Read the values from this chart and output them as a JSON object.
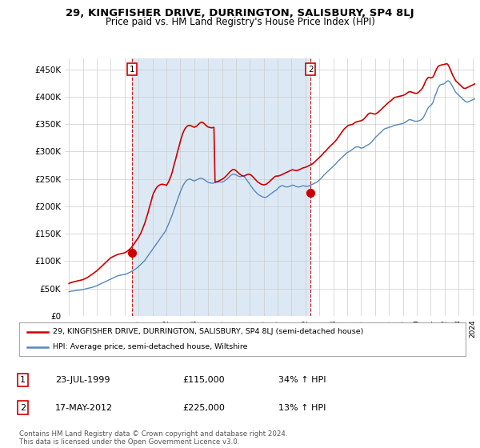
{
  "title": "29, KINGFISHER DRIVE, DURRINGTON, SALISBURY, SP4 8LJ",
  "subtitle": "Price paid vs. HM Land Registry's House Price Index (HPI)",
  "legend_line1": "29, KINGFISHER DRIVE, DURRINGTON, SALISBURY, SP4 8LJ (semi-detached house)",
  "legend_line2": "HPI: Average price, semi-detached house, Wiltshire",
  "annotation1": {
    "label": "1",
    "date": "23-JUL-1999",
    "price": "£115,000",
    "pct": "34% ↑ HPI",
    "x_year": 1999.55,
    "y_val": 115000
  },
  "annotation2": {
    "label": "2",
    "date": "17-MAY-2012",
    "price": "£225,000",
    "pct": "13% ↑ HPI",
    "x_year": 2012.37,
    "y_val": 225000
  },
  "footer": "Contains HM Land Registry data © Crown copyright and database right 2024.\nThis data is licensed under the Open Government Licence v3.0.",
  "red_color": "#cc0000",
  "blue_color": "#5588bb",
  "blue_fill_color": "#dce9f5",
  "background_color": "#ffffff",
  "ylim": [
    0,
    470000
  ],
  "yticks": [
    0,
    50000,
    100000,
    150000,
    200000,
    250000,
    300000,
    350000,
    400000,
    450000
  ],
  "xlim_start": 1994.7,
  "xlim_end": 2024.2,
  "hpi_years": [
    1995.0,
    1995.08,
    1995.17,
    1995.25,
    1995.33,
    1995.42,
    1995.5,
    1995.58,
    1995.67,
    1995.75,
    1995.83,
    1995.92,
    1996.0,
    1996.08,
    1996.17,
    1996.25,
    1996.33,
    1996.42,
    1996.5,
    1996.58,
    1996.67,
    1996.75,
    1996.83,
    1996.92,
    1997.0,
    1997.08,
    1997.17,
    1997.25,
    1997.33,
    1997.42,
    1997.5,
    1997.58,
    1997.67,
    1997.75,
    1997.83,
    1997.92,
    1998.0,
    1998.08,
    1998.17,
    1998.25,
    1998.33,
    1998.42,
    1998.5,
    1998.58,
    1998.67,
    1998.75,
    1998.83,
    1998.92,
    1999.0,
    1999.08,
    1999.17,
    1999.25,
    1999.33,
    1999.42,
    1999.5,
    1999.58,
    1999.67,
    1999.75,
    1999.83,
    1999.92,
    2000.0,
    2000.08,
    2000.17,
    2000.25,
    2000.33,
    2000.42,
    2000.5,
    2000.58,
    2000.67,
    2000.75,
    2000.83,
    2000.92,
    2001.0,
    2001.08,
    2001.17,
    2001.25,
    2001.33,
    2001.42,
    2001.5,
    2001.58,
    2001.67,
    2001.75,
    2001.83,
    2001.92,
    2002.0,
    2002.08,
    2002.17,
    2002.25,
    2002.33,
    2002.42,
    2002.5,
    2002.58,
    2002.67,
    2002.75,
    2002.83,
    2002.92,
    2003.0,
    2003.08,
    2003.17,
    2003.25,
    2003.33,
    2003.42,
    2003.5,
    2003.58,
    2003.67,
    2003.75,
    2003.83,
    2003.92,
    2004.0,
    2004.08,
    2004.17,
    2004.25,
    2004.33,
    2004.42,
    2004.5,
    2004.58,
    2004.67,
    2004.75,
    2004.83,
    2004.92,
    2005.0,
    2005.08,
    2005.17,
    2005.25,
    2005.33,
    2005.42,
    2005.5,
    2005.58,
    2005.67,
    2005.75,
    2005.83,
    2005.92,
    2006.0,
    2006.08,
    2006.17,
    2006.25,
    2006.33,
    2006.42,
    2006.5,
    2006.58,
    2006.67,
    2006.75,
    2006.83,
    2006.92,
    2007.0,
    2007.08,
    2007.17,
    2007.25,
    2007.33,
    2007.42,
    2007.5,
    2007.58,
    2007.67,
    2007.75,
    2007.83,
    2007.92,
    2008.0,
    2008.08,
    2008.17,
    2008.25,
    2008.33,
    2008.42,
    2008.5,
    2008.58,
    2008.67,
    2008.75,
    2008.83,
    2008.92,
    2009.0,
    2009.08,
    2009.17,
    2009.25,
    2009.33,
    2009.42,
    2009.5,
    2009.58,
    2009.67,
    2009.75,
    2009.83,
    2009.92,
    2010.0,
    2010.08,
    2010.17,
    2010.25,
    2010.33,
    2010.42,
    2010.5,
    2010.58,
    2010.67,
    2010.75,
    2010.83,
    2010.92,
    2011.0,
    2011.08,
    2011.17,
    2011.25,
    2011.33,
    2011.42,
    2011.5,
    2011.58,
    2011.67,
    2011.75,
    2011.83,
    2011.92,
    2012.0,
    2012.08,
    2012.17,
    2012.25,
    2012.33,
    2012.42,
    2012.5,
    2012.58,
    2012.67,
    2012.75,
    2012.83,
    2012.92,
    2013.0,
    2013.08,
    2013.17,
    2013.25,
    2013.33,
    2013.42,
    2013.5,
    2013.58,
    2013.67,
    2013.75,
    2013.83,
    2013.92,
    2014.0,
    2014.08,
    2014.17,
    2014.25,
    2014.33,
    2014.42,
    2014.5,
    2014.58,
    2014.67,
    2014.75,
    2014.83,
    2014.92,
    2015.0,
    2015.08,
    2015.17,
    2015.25,
    2015.33,
    2015.42,
    2015.5,
    2015.58,
    2015.67,
    2015.75,
    2015.83,
    2015.92,
    2016.0,
    2016.08,
    2016.17,
    2016.25,
    2016.33,
    2016.42,
    2016.5,
    2016.58,
    2016.67,
    2016.75,
    2016.83,
    2016.92,
    2017.0,
    2017.08,
    2017.17,
    2017.25,
    2017.33,
    2017.42,
    2017.5,
    2017.58,
    2017.67,
    2017.75,
    2017.83,
    2017.92,
    2018.0,
    2018.08,
    2018.17,
    2018.25,
    2018.33,
    2018.42,
    2018.5,
    2018.58,
    2018.67,
    2018.75,
    2018.83,
    2018.92,
    2019.0,
    2019.08,
    2019.17,
    2019.25,
    2019.33,
    2019.42,
    2019.5,
    2019.58,
    2019.67,
    2019.75,
    2019.83,
    2019.92,
    2020.0,
    2020.08,
    2020.17,
    2020.25,
    2020.33,
    2020.42,
    2020.5,
    2020.58,
    2020.67,
    2020.75,
    2020.83,
    2020.92,
    2021.0,
    2021.08,
    2021.17,
    2021.25,
    2021.33,
    2021.42,
    2021.5,
    2021.58,
    2021.67,
    2021.75,
    2021.83,
    2021.92,
    2022.0,
    2022.08,
    2022.17,
    2022.25,
    2022.33,
    2022.42,
    2022.5,
    2022.58,
    2022.67,
    2022.75,
    2022.83,
    2022.92,
    2023.0,
    2023.08,
    2023.17,
    2023.25,
    2023.33,
    2023.42,
    2023.5,
    2023.58,
    2023.67,
    2023.75,
    2023.83,
    2023.92,
    2024.0,
    2024.08,
    2024.17
  ],
  "hpi_values": [
    44000,
    44500,
    45000,
    45200,
    45500,
    45800,
    46000,
    46300,
    46600,
    47000,
    47200,
    47500,
    48000,
    48500,
    49000,
    49500,
    50000,
    50500,
    51000,
    51500,
    52000,
    52800,
    53500,
    54200,
    55000,
    56000,
    57000,
    58000,
    59000,
    60000,
    61000,
    62000,
    63000,
    64000,
    65000,
    66000,
    67000,
    68000,
    69000,
    70000,
    71000,
    72000,
    73000,
    73500,
    74000,
    74500,
    74800,
    75000,
    75500,
    76000,
    77000,
    78000,
    79000,
    80000,
    81000,
    82000,
    83500,
    85000,
    86500,
    88000,
    90000,
    92000,
    94000,
    96000,
    98000,
    100000,
    103000,
    106000,
    109000,
    112000,
    115000,
    118000,
    121000,
    124000,
    127000,
    130000,
    133000,
    136000,
    139000,
    142000,
    145000,
    148000,
    151000,
    154000,
    158000,
    163000,
    168000,
    173000,
    178000,
    184000,
    190000,
    196000,
    202000,
    208000,
    214000,
    220000,
    226000,
    231000,
    236000,
    240000,
    243000,
    246000,
    248000,
    249000,
    249500,
    249000,
    248000,
    247000,
    246000,
    247000,
    248000,
    249000,
    250000,
    251000,
    251000,
    250500,
    249500,
    248000,
    246500,
    245000,
    243500,
    243000,
    242500,
    242000,
    242000,
    242500,
    243000,
    243500,
    244000,
    244500,
    244500,
    244000,
    244000,
    245000,
    246000,
    247500,
    249000,
    251000,
    253000,
    255000,
    257000,
    258000,
    258500,
    258000,
    257000,
    256000,
    255000,
    254000,
    254000,
    254500,
    255000,
    254000,
    252000,
    249000,
    246000,
    243000,
    240000,
    237000,
    234000,
    231000,
    228500,
    226000,
    224000,
    222000,
    220500,
    219000,
    218000,
    217000,
    216500,
    216000,
    216500,
    217500,
    219000,
    221000,
    222500,
    224000,
    225500,
    227000,
    228500,
    230000,
    232000,
    234000,
    236000,
    237000,
    237500,
    237000,
    236000,
    235500,
    235000,
    235500,
    236000,
    237000,
    238000,
    238500,
    238000,
    237000,
    236000,
    235500,
    235000,
    235500,
    236000,
    237000,
    237500,
    237000,
    236500,
    236000,
    236500,
    237000,
    238000,
    239000,
    240000,
    241000,
    242000,
    243000,
    244500,
    246000,
    248000,
    250000,
    252000,
    254500,
    257000,
    259000,
    261000,
    263000,
    265000,
    267000,
    269000,
    271000,
    273000,
    275000,
    277000,
    279500,
    282000,
    284000,
    286000,
    288000,
    290000,
    292000,
    294000,
    296000,
    298000,
    299000,
    300000,
    301500,
    303000,
    304500,
    306000,
    307500,
    308000,
    308500,
    308000,
    307000,
    306000,
    306500,
    307000,
    308500,
    310000,
    311000,
    312000,
    313500,
    315000,
    317000,
    319500,
    322000,
    325000,
    327000,
    329000,
    331000,
    333000,
    335000,
    337000,
    339000,
    341000,
    342000,
    342500,
    343000,
    344000,
    344500,
    345000,
    346000,
    347000,
    347500,
    348000,
    348500,
    349000,
    349500,
    350000,
    350500,
    351000,
    352000,
    353000,
    354500,
    356000,
    357500,
    358000,
    357500,
    357000,
    356000,
    355500,
    355000,
    355000,
    355500,
    356000,
    357000,
    358000,
    360000,
    363000,
    367000,
    372000,
    376000,
    380000,
    382000,
    384000,
    386000,
    390000,
    396000,
    402000,
    408000,
    414000,
    418000,
    421000,
    422000,
    422500,
    423000,
    424000,
    426000,
    428000,
    429000,
    428000,
    425000,
    422000,
    418000,
    414000,
    410000,
    407000,
    405000,
    403000,
    401000,
    399000,
    397000,
    395000,
    393000,
    391000,
    390000,
    390000,
    391000,
    392000,
    393000,
    394000,
    395000,
    396000
  ],
  "red_years": [
    1995.0,
    1995.08,
    1995.17,
    1995.25,
    1995.33,
    1995.42,
    1995.5,
    1995.58,
    1995.67,
    1995.75,
    1995.83,
    1995.92,
    1996.0,
    1996.08,
    1996.17,
    1996.25,
    1996.33,
    1996.42,
    1996.5,
    1996.58,
    1996.67,
    1996.75,
    1996.83,
    1996.92,
    1997.0,
    1997.08,
    1997.17,
    1997.25,
    1997.33,
    1997.42,
    1997.5,
    1997.58,
    1997.67,
    1997.75,
    1997.83,
    1997.92,
    1998.0,
    1998.08,
    1998.17,
    1998.25,
    1998.33,
    1998.42,
    1998.5,
    1998.58,
    1998.67,
    1998.75,
    1998.83,
    1998.92,
    1999.0,
    1999.08,
    1999.17,
    1999.25,
    1999.33,
    1999.42,
    1999.5,
    1999.58,
    1999.67,
    1999.75,
    1999.83,
    1999.92,
    2000.0,
    2000.08,
    2000.17,
    2000.25,
    2000.33,
    2000.42,
    2000.5,
    2000.58,
    2000.67,
    2000.75,
    2000.83,
    2000.92,
    2001.0,
    2001.08,
    2001.17,
    2001.25,
    2001.33,
    2001.42,
    2001.5,
    2001.58,
    2001.67,
    2001.75,
    2001.83,
    2001.92,
    2002.0,
    2002.08,
    2002.17,
    2002.25,
    2002.33,
    2002.42,
    2002.5,
    2002.58,
    2002.67,
    2002.75,
    2002.83,
    2002.92,
    2003.0,
    2003.08,
    2003.17,
    2003.25,
    2003.33,
    2003.42,
    2003.5,
    2003.58,
    2003.67,
    2003.75,
    2003.83,
    2003.92,
    2004.0,
    2004.08,
    2004.17,
    2004.25,
    2004.33,
    2004.42,
    2004.5,
    2004.58,
    2004.67,
    2004.75,
    2004.83,
    2004.92,
    2005.0,
    2005.08,
    2005.17,
    2005.25,
    2005.33,
    2005.42,
    2005.5,
    2005.58,
    2005.67,
    2005.75,
    2005.83,
    2005.92,
    2006.0,
    2006.08,
    2006.17,
    2006.25,
    2006.33,
    2006.42,
    2006.5,
    2006.58,
    2006.67,
    2006.75,
    2006.83,
    2006.92,
    2007.0,
    2007.08,
    2007.17,
    2007.25,
    2007.33,
    2007.42,
    2007.5,
    2007.58,
    2007.67,
    2007.75,
    2007.83,
    2007.92,
    2008.0,
    2008.08,
    2008.17,
    2008.25,
    2008.33,
    2008.42,
    2008.5,
    2008.58,
    2008.67,
    2008.75,
    2008.83,
    2008.92,
    2009.0,
    2009.08,
    2009.17,
    2009.25,
    2009.33,
    2009.42,
    2009.5,
    2009.58,
    2009.67,
    2009.75,
    2009.83,
    2009.92,
    2010.0,
    2010.08,
    2010.17,
    2010.25,
    2010.33,
    2010.42,
    2010.5,
    2010.58,
    2010.67,
    2010.75,
    2010.83,
    2010.92,
    2011.0,
    2011.08,
    2011.17,
    2011.25,
    2011.33,
    2011.42,
    2011.5,
    2011.58,
    2011.67,
    2011.75,
    2011.83,
    2011.92,
    2012.0,
    2012.08,
    2012.17,
    2012.25,
    2012.33,
    2012.42,
    2012.5,
    2012.58,
    2012.67,
    2012.75,
    2012.83,
    2012.92,
    2013.0,
    2013.08,
    2013.17,
    2013.25,
    2013.33,
    2013.42,
    2013.5,
    2013.58,
    2013.67,
    2013.75,
    2013.83,
    2013.92,
    2014.0,
    2014.08,
    2014.17,
    2014.25,
    2014.33,
    2014.42,
    2014.5,
    2014.58,
    2014.67,
    2014.75,
    2014.83,
    2014.92,
    2015.0,
    2015.08,
    2015.17,
    2015.25,
    2015.33,
    2015.42,
    2015.5,
    2015.58,
    2015.67,
    2015.75,
    2015.83,
    2015.92,
    2016.0,
    2016.08,
    2016.17,
    2016.25,
    2016.33,
    2016.42,
    2016.5,
    2016.58,
    2016.67,
    2016.75,
    2016.83,
    2016.92,
    2017.0,
    2017.08,
    2017.17,
    2017.25,
    2017.33,
    2017.42,
    2017.5,
    2017.58,
    2017.67,
    2017.75,
    2017.83,
    2017.92,
    2018.0,
    2018.08,
    2018.17,
    2018.25,
    2018.33,
    2018.42,
    2018.5,
    2018.58,
    2018.67,
    2018.75,
    2018.83,
    2018.92,
    2019.0,
    2019.08,
    2019.17,
    2019.25,
    2019.33,
    2019.42,
    2019.5,
    2019.58,
    2019.67,
    2019.75,
    2019.83,
    2019.92,
    2020.0,
    2020.08,
    2020.17,
    2020.25,
    2020.33,
    2020.42,
    2020.5,
    2020.58,
    2020.67,
    2020.75,
    2020.83,
    2020.92,
    2021.0,
    2021.08,
    2021.17,
    2021.25,
    2021.33,
    2021.42,
    2021.5,
    2021.58,
    2021.67,
    2021.75,
    2021.83,
    2021.92,
    2022.0,
    2022.08,
    2022.17,
    2022.25,
    2022.33,
    2022.42,
    2022.5,
    2022.58,
    2022.67,
    2022.75,
    2022.83,
    2022.92,
    2023.0,
    2023.08,
    2023.17,
    2023.25,
    2023.33,
    2023.42,
    2023.5,
    2023.58,
    2023.67,
    2023.75,
    2023.83,
    2023.92,
    2024.0,
    2024.08,
    2024.17
  ],
  "red_values": [
    59000,
    60000,
    61000,
    61500,
    62000,
    62500,
    63000,
    63500,
    64000,
    64500,
    65000,
    65500,
    66000,
    67000,
    68000,
    69000,
    70000,
    71500,
    73000,
    74500,
    76000,
    77500,
    79000,
    80500,
    82000,
    84000,
    86000,
    88000,
    90000,
    92000,
    94000,
    96000,
    98000,
    100000,
    102000,
    104000,
    106000,
    107000,
    108000,
    109000,
    110000,
    111000,
    112000,
    112500,
    113000,
    113500,
    114000,
    114500,
    115000,
    116000,
    117500,
    119000,
    121000,
    123000,
    125000,
    128000,
    131000,
    134000,
    137000,
    140000,
    143000,
    147000,
    151000,
    156000,
    161000,
    167000,
    173000,
    180000,
    187000,
    195000,
    202000,
    210000,
    218000,
    224000,
    228000,
    232000,
    235000,
    237000,
    238500,
    239500,
    240000,
    240000,
    239500,
    239000,
    238000,
    241000,
    245000,
    250000,
    255000,
    262000,
    270000,
    278000,
    286000,
    294000,
    302000,
    310000,
    318000,
    325000,
    332000,
    337000,
    341000,
    344000,
    346000,
    347000,
    347500,
    347000,
    346000,
    345000,
    344000,
    345000,
    346000,
    348000,
    350000,
    352000,
    353000,
    353000,
    352000,
    350000,
    348000,
    346000,
    344500,
    344000,
    343500,
    343000,
    343500,
    344000,
    244000,
    244500,
    245000,
    246000,
    247000,
    248000,
    249000,
    250500,
    252000,
    254000,
    256000,
    258500,
    261000,
    263000,
    265000,
    266500,
    267000,
    266500,
    265000,
    263000,
    261000,
    259000,
    257500,
    256000,
    255500,
    255000,
    256000,
    257000,
    258000,
    258500,
    258000,
    257000,
    255000,
    253000,
    250500,
    248000,
    246000,
    244000,
    242500,
    241000,
    240000,
    239500,
    239000,
    239500,
    240000,
    241500,
    243000,
    245000,
    247000,
    249000,
    251000,
    253000,
    254500,
    255000,
    255000,
    255500,
    256000,
    257000,
    258000,
    259000,
    260000,
    261000,
    262000,
    263000,
    264000,
    265000,
    266000,
    266500,
    266000,
    265500,
    265000,
    265500,
    266000,
    267000,
    268000,
    269000,
    270000,
    270500,
    271000,
    272000,
    273000,
    274000,
    275000,
    276000,
    277500,
    279000,
    281000,
    283000,
    285000,
    287000,
    289000,
    291000,
    293000,
    295500,
    298000,
    300000,
    302000,
    304500,
    307000,
    309000,
    311000,
    313000,
    315000,
    317000,
    319500,
    322000,
    325000,
    328000,
    331000,
    334000,
    337000,
    340000,
    342000,
    344000,
    346000,
    347500,
    348000,
    348500,
    349000,
    350000,
    351500,
    353000,
    354000,
    354500,
    355000,
    355500,
    356000,
    357000,
    358500,
    360500,
    363000,
    365500,
    368000,
    369500,
    370000,
    369500,
    369000,
    368500,
    368000,
    369000,
    370500,
    372000,
    374000,
    376000,
    378000,
    380000,
    382000,
    384000,
    386000,
    388000,
    390000,
    391500,
    393000,
    395000,
    397000,
    398500,
    399000,
    399500,
    400000,
    400500,
    401000,
    401500,
    402000,
    403000,
    404000,
    405500,
    407000,
    408500,
    409000,
    408500,
    408000,
    407000,
    406500,
    406000,
    406000,
    407000,
    409000,
    411000,
    413000,
    416000,
    420000,
    425000,
    430000,
    433000,
    435000,
    435000,
    434000,
    434500,
    436000,
    440000,
    445000,
    450000,
    454000,
    456000,
    457000,
    457500,
    458000,
    458500,
    459000,
    459500,
    460000,
    458000,
    454000,
    449000,
    444000,
    439000,
    435000,
    431000,
    428000,
    426000,
    424000,
    422000,
    420000,
    418000,
    416000,
    415000,
    415000,
    416000,
    417000,
    418000,
    419000,
    420000,
    421000,
    422000,
    423000
  ]
}
